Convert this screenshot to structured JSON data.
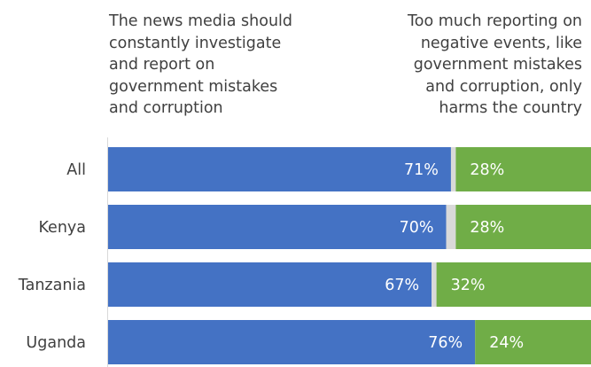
{
  "header": {
    "left_lines": [
      "The news media should",
      "constantly investigate",
      "and report on",
      "government mistakes",
      "and corruption"
    ],
    "right_lines": [
      "Too much reporting on",
      "negative events, like",
      "government mistakes",
      "and corruption, only",
      "harms the country"
    ]
  },
  "chart_data": {
    "type": "bar",
    "orientation": "horizontal",
    "stacked": true,
    "categories": [
      "All",
      "Kenya",
      "Tanzania",
      "Uganda"
    ],
    "series": [
      {
        "name": "The news media should constantly investigate and report on government mistakes and corruption",
        "values": [
          71,
          70,
          67,
          76
        ],
        "labels": [
          "71%",
          "70%",
          "67%",
          "76%"
        ],
        "color": "#4472c4"
      },
      {
        "name": "",
        "values": [
          1,
          2,
          1,
          0
        ],
        "labels": [
          "",
          "",
          "",
          ""
        ],
        "color": "#d9d9d9"
      },
      {
        "name": "Too much reporting on negative events, like government mistakes and corruption, only harms the country",
        "values": [
          28,
          28,
          32,
          24
        ],
        "labels": [
          "28%",
          "28%",
          "32%",
          "24%"
        ],
        "color": "#70ad47"
      }
    ],
    "xlim": [
      0,
      100
    ],
    "grid": false,
    "legend": "top"
  }
}
